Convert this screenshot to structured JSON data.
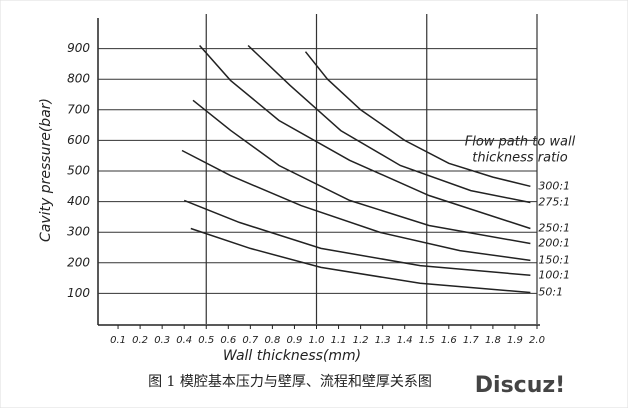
{
  "chart_data": {
    "type": "line",
    "y_label": "Cavity pressure(bar)",
    "x_label": "Wall thickness(mm)",
    "legend_title": [
      "Flow path to wall",
      "thickness ratio"
    ],
    "caption": "图 1  模腔基本压力与壁厚、流程和壁厚关系图",
    "watermark": "Discuz!",
    "xlim": [
      0,
      2.0
    ],
    "ylim": [
      0,
      1000
    ],
    "xticks": [
      0.1,
      0.2,
      0.3,
      0.4,
      0.5,
      0.6,
      0.7,
      0.8,
      0.9,
      {
        "value": 1,
        "label": "1.0"
      },
      1.1,
      1.2,
      1.3,
      1.4,
      1.5,
      1.6,
      1.7,
      1.8,
      1.9,
      {
        "value": 2,
        "label": "2.0"
      }
    ],
    "yticks": [
      100,
      200,
      300,
      400,
      500,
      600,
      700,
      800,
      900
    ],
    "grid": true,
    "series": [
      {
        "name": "300:1",
        "color": "#222",
        "x": [
          0.95,
          1.05,
          1.2,
          1.4,
          1.6,
          1.8,
          1.97
        ],
        "values": [
          890,
          800,
          700,
          600,
          525,
          480,
          450
        ]
      },
      {
        "name": "275:1",
        "color": "#222",
        "x": [
          0.69,
          0.88,
          1.11,
          1.38,
          1.7,
          1.97
        ],
        "values": [
          910,
          780,
          632,
          518,
          436,
          397
        ]
      },
      {
        "name": "250:1",
        "color": "#222",
        "x": [
          0.47,
          0.61,
          0.83,
          1.15,
          1.51,
          1.97
        ],
        "values": [
          910,
          796,
          665,
          535,
          420,
          312
        ]
      },
      {
        "name": "200:1",
        "color": "#222",
        "x": [
          0.44,
          0.61,
          0.83,
          1.15,
          1.51,
          1.97
        ],
        "values": [
          731,
          633,
          518,
          404,
          322,
          263
        ]
      },
      {
        "name": "150:1",
        "color": "#222",
        "x": [
          0.39,
          0.61,
          0.93,
          1.29,
          1.65,
          1.97
        ],
        "values": [
          567,
          485,
          387,
          299,
          240,
          208
        ]
      },
      {
        "name": "100:1",
        "color": "#222",
        "x": [
          0.4,
          0.65,
          1.02,
          1.47,
          1.97
        ],
        "values": [
          404,
          332,
          247,
          191,
          159
        ]
      },
      {
        "name": "50:1",
        "color": "#222",
        "x": [
          0.43,
          0.7,
          1.02,
          1.47,
          1.97
        ],
        "values": [
          312,
          247,
          185,
          133,
          103
        ]
      }
    ]
  }
}
